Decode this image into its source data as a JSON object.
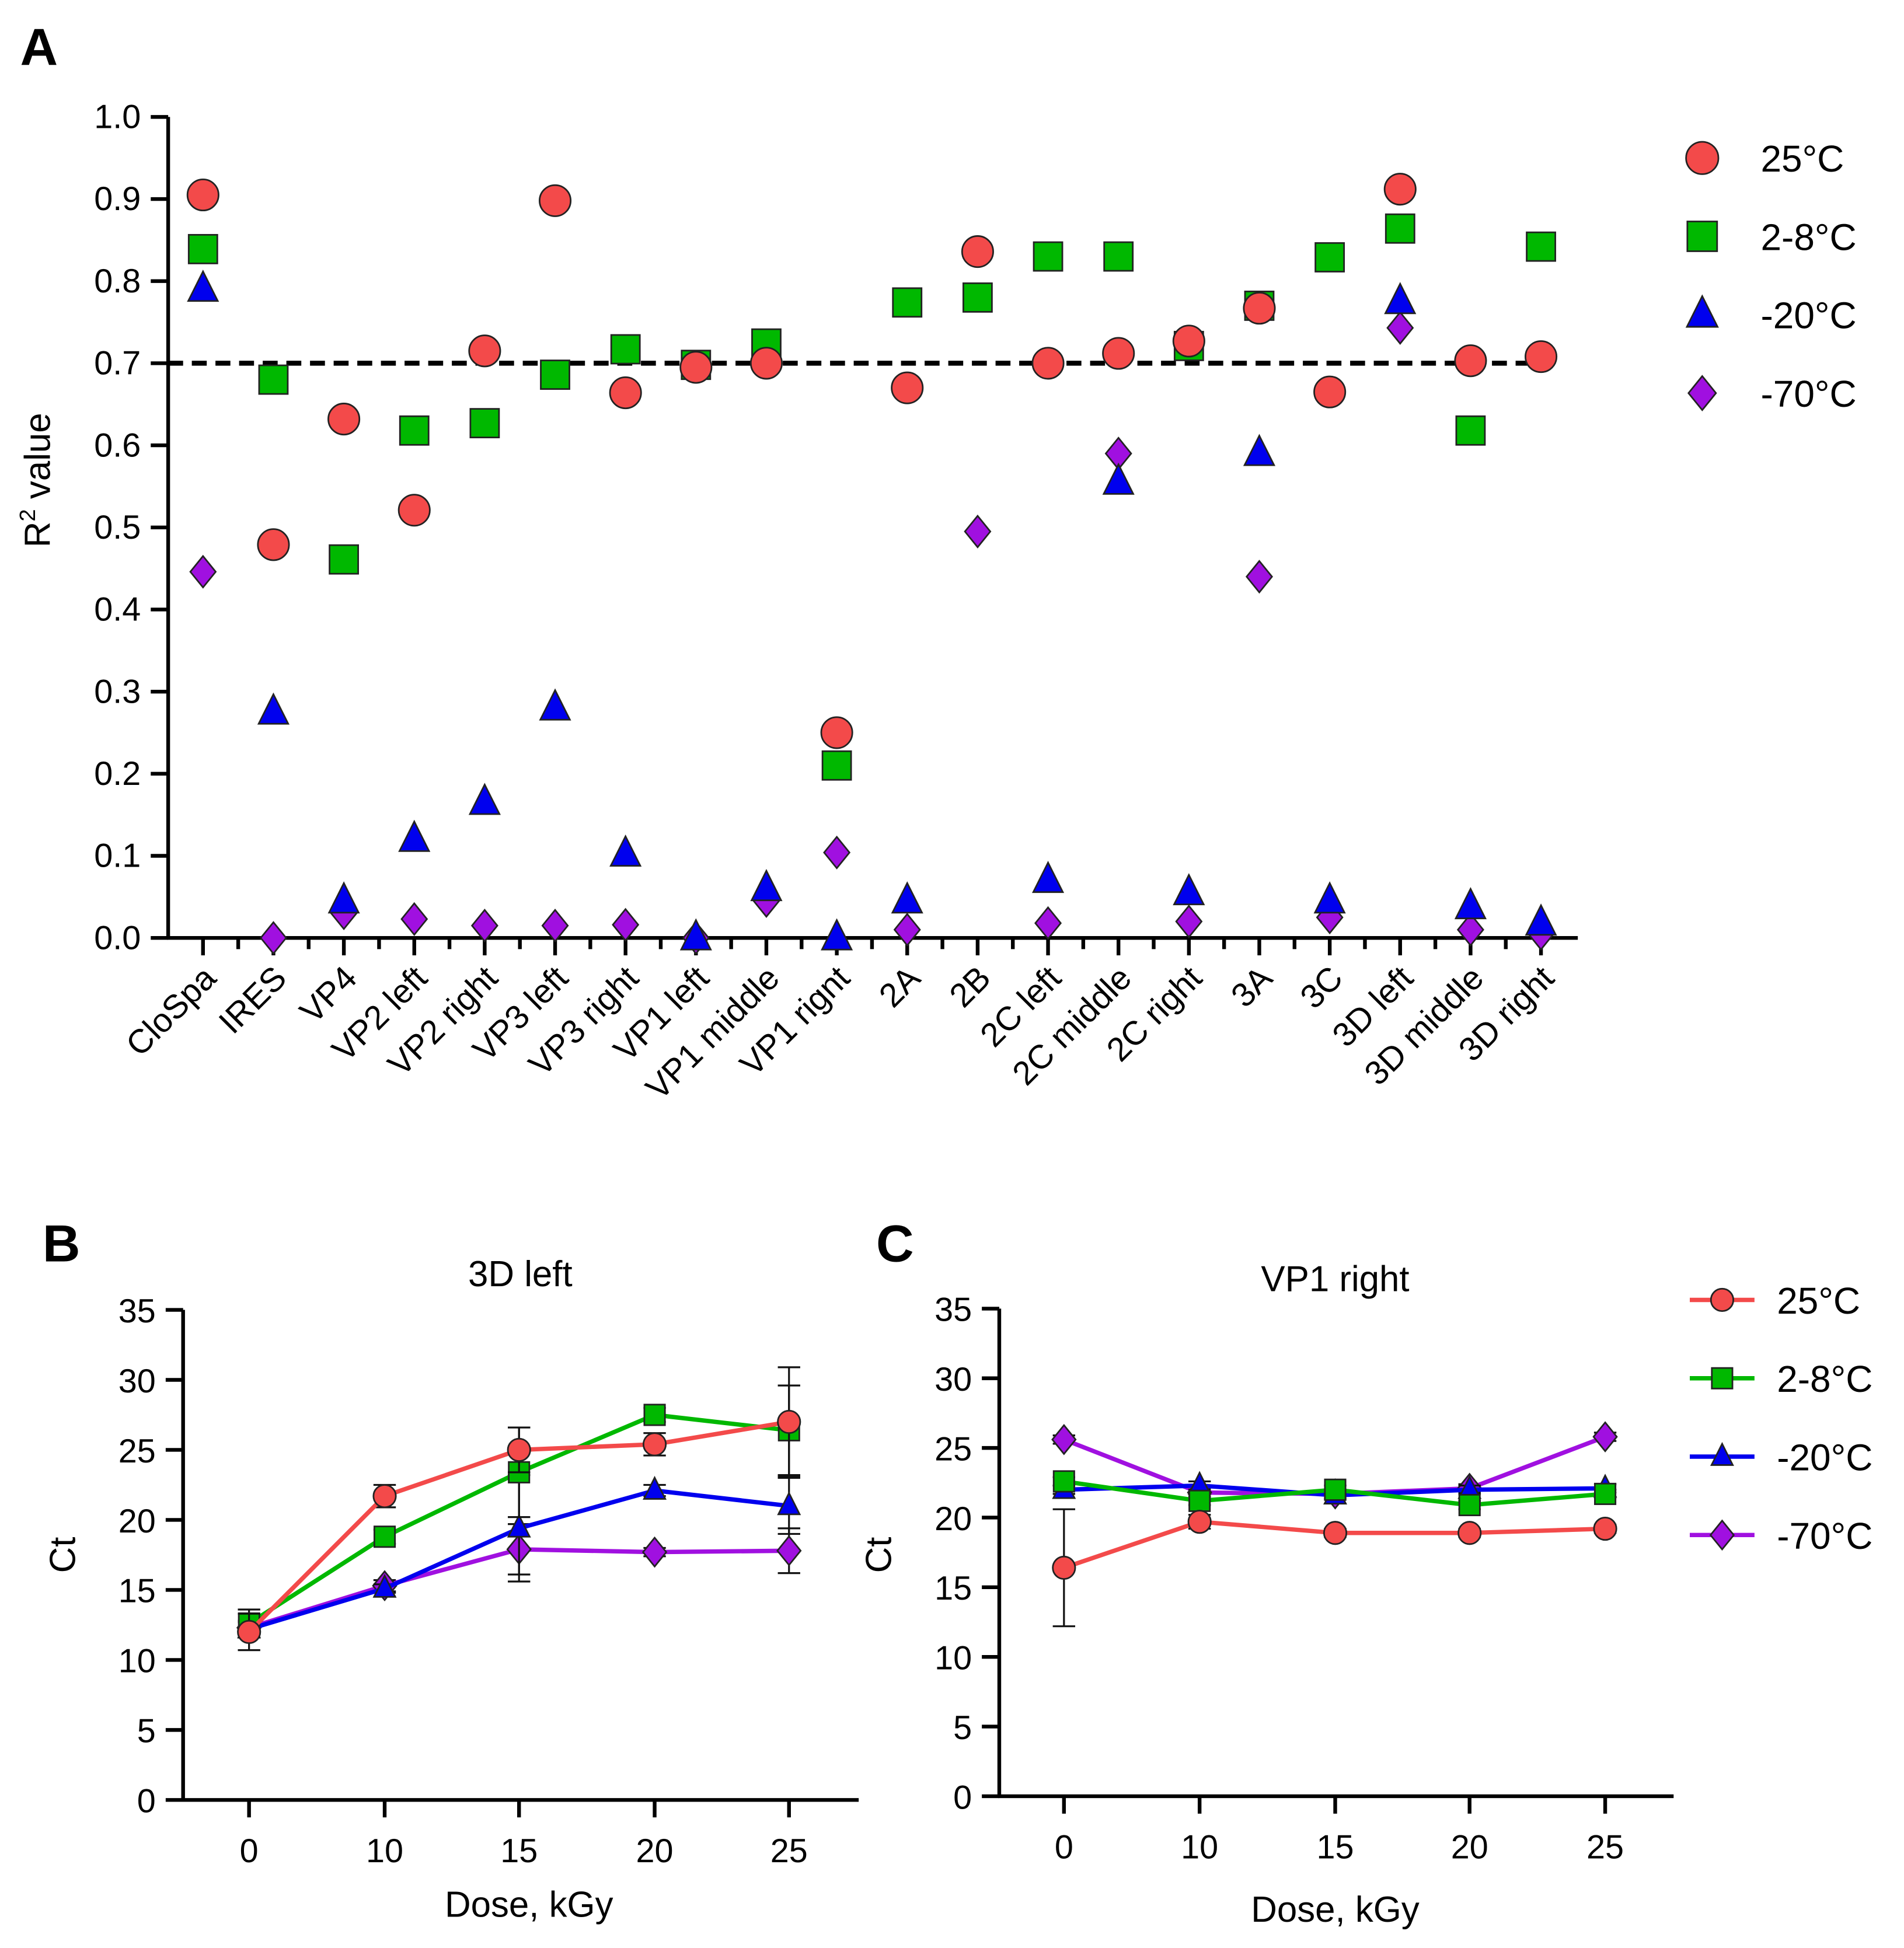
{
  "colors": {
    "25C": "#f34a4a",
    "2-8C": "#00b800",
    "-20C": "#0000ee",
    "-70C": "#a010e0"
  },
  "panel_labels": [
    "A",
    "B",
    "C"
  ],
  "chart_data": [
    {
      "type": "scatter",
      "panel": "A",
      "title": "",
      "xlabel": "",
      "ylabel": "R",
      "ylabel_sup": "2",
      "ylabel_rest": " value",
      "ylim": [
        0,
        1.0
      ],
      "yticks": [
        "0.0",
        "0.1",
        "0.2",
        "0.3",
        "0.4",
        "0.5",
        "0.6",
        "0.7",
        "0.8",
        "0.9",
        "1.0"
      ],
      "threshold": 0.7,
      "legend_position": "right",
      "categories": [
        "CloSpa",
        "IRES",
        "VP4",
        "VP2 left",
        "VP2 right",
        "VP3 left",
        "VP3 right",
        "VP1 left",
        "VP1 middle",
        "VP1 rignt",
        "2A",
        "2B",
        "2C left",
        "2C middle",
        "2C right",
        "3A",
        "3C",
        "3D left",
        "3D middle",
        "3D right"
      ],
      "series": [
        {
          "name": "25°C",
          "marker": "circle",
          "values": [
            0.905,
            0.479,
            0.632,
            0.521,
            0.715,
            0.898,
            0.664,
            0.695,
            0.7,
            0.25,
            0.67,
            0.836,
            0.7,
            0.712,
            0.727,
            0.767,
            0.665,
            0.912,
            0.703,
            0.708
          ]
        },
        {
          "name": "2-8°C",
          "marker": "square",
          "values": [
            0.839,
            0.68,
            0.461,
            0.618,
            0.627,
            0.686,
            0.717,
            0.698,
            0.724,
            0.21,
            0.774,
            0.78,
            0.83,
            0.83,
            0.721,
            0.77,
            0.829,
            0.864,
            0.618,
            0.842
          ]
        },
        {
          "name": "-20°C",
          "marker": "triangle",
          "values": [
            0.79,
            0.275,
            0.045,
            0.12,
            0.165,
            0.28,
            0.102,
            0.0,
            0.06,
            0.0,
            0.045,
            null,
            0.07,
            0.555,
            0.055,
            0.59,
            0.045,
            0.775,
            0.038,
            0.018
          ]
        },
        {
          "name": "-70°C",
          "marker": "diamond",
          "values": [
            0.446,
            0.0,
            0.03,
            0.023,
            0.015,
            0.015,
            0.016,
            0.0,
            0.045,
            0.104,
            0.01,
            0.495,
            0.018,
            0.59,
            0.02,
            0.44,
            0.025,
            0.743,
            0.01,
            0.005
          ]
        }
      ]
    },
    {
      "type": "line",
      "panel": "B",
      "title": "3D left",
      "xlabel": "Dose, kGy",
      "ylabel": "Ct",
      "ylim": [
        0,
        35
      ],
      "yticks": [
        "0",
        "5",
        "10",
        "15",
        "20",
        "25",
        "30",
        "35"
      ],
      "x": [
        "0",
        "10",
        "15",
        "20",
        "25"
      ],
      "series": [
        {
          "name": "25°C",
          "marker": "circle",
          "values": [
            12.0,
            21.7,
            25.0,
            25.4,
            27.0
          ],
          "errors": [
            1.3,
            0.8,
            1.6,
            0.8,
            3.9
          ]
        },
        {
          "name": "2-8°C",
          "marker": "square",
          "values": [
            12.6,
            18.8,
            23.4,
            27.5,
            26.4
          ],
          "errors": [
            1.0,
            0.5,
            3.2,
            0.5,
            3.2
          ]
        },
        {
          "name": "-20°C",
          "marker": "triangle",
          "values": [
            12.2,
            15.1,
            19.4,
            22.1,
            21.0
          ],
          "errors": [
            0.5,
            0.3,
            3.8,
            0.4,
            2.0
          ]
        },
        {
          "name": "-70°C",
          "marker": "diamond",
          "values": [
            12.3,
            15.3,
            17.9,
            17.7,
            17.8
          ],
          "errors": [
            0.5,
            0.4,
            1.8,
            0.3,
            1.6
          ]
        }
      ]
    },
    {
      "type": "line",
      "panel": "C",
      "title": "VP1 right",
      "xlabel": "Dose, kGy",
      "ylabel": "Ct",
      "ylim": [
        0,
        35
      ],
      "yticks": [
        "0",
        "5",
        "10",
        "15",
        "20",
        "25",
        "30",
        "35"
      ],
      "x": [
        "0",
        "10",
        "15",
        "20",
        "25"
      ],
      "legend_position": "right",
      "series": [
        {
          "name": "25°C",
          "marker": "circle",
          "values": [
            16.4,
            19.7,
            18.9,
            18.9,
            19.2
          ],
          "errors": [
            4.2,
            0.5,
            0.3,
            0.3,
            0.3
          ]
        },
        {
          "name": "2-8°C",
          "marker": "square",
          "values": [
            22.6,
            21.2,
            22.0,
            20.9,
            21.7
          ],
          "errors": [
            0.3,
            0.3,
            0.3,
            0.3,
            0.3
          ]
        },
        {
          "name": "-20°C",
          "marker": "triangle",
          "values": [
            22.0,
            22.3,
            21.6,
            22.0,
            22.1
          ],
          "errors": [
            0.3,
            0.3,
            0.3,
            0.3,
            0.3
          ]
        },
        {
          "name": "-70°C",
          "marker": "diamond",
          "values": [
            25.6,
            21.8,
            21.7,
            22.1,
            25.8
          ],
          "errors": [
            0.3,
            0.3,
            0.3,
            0.3,
            0.3
          ]
        }
      ]
    }
  ]
}
